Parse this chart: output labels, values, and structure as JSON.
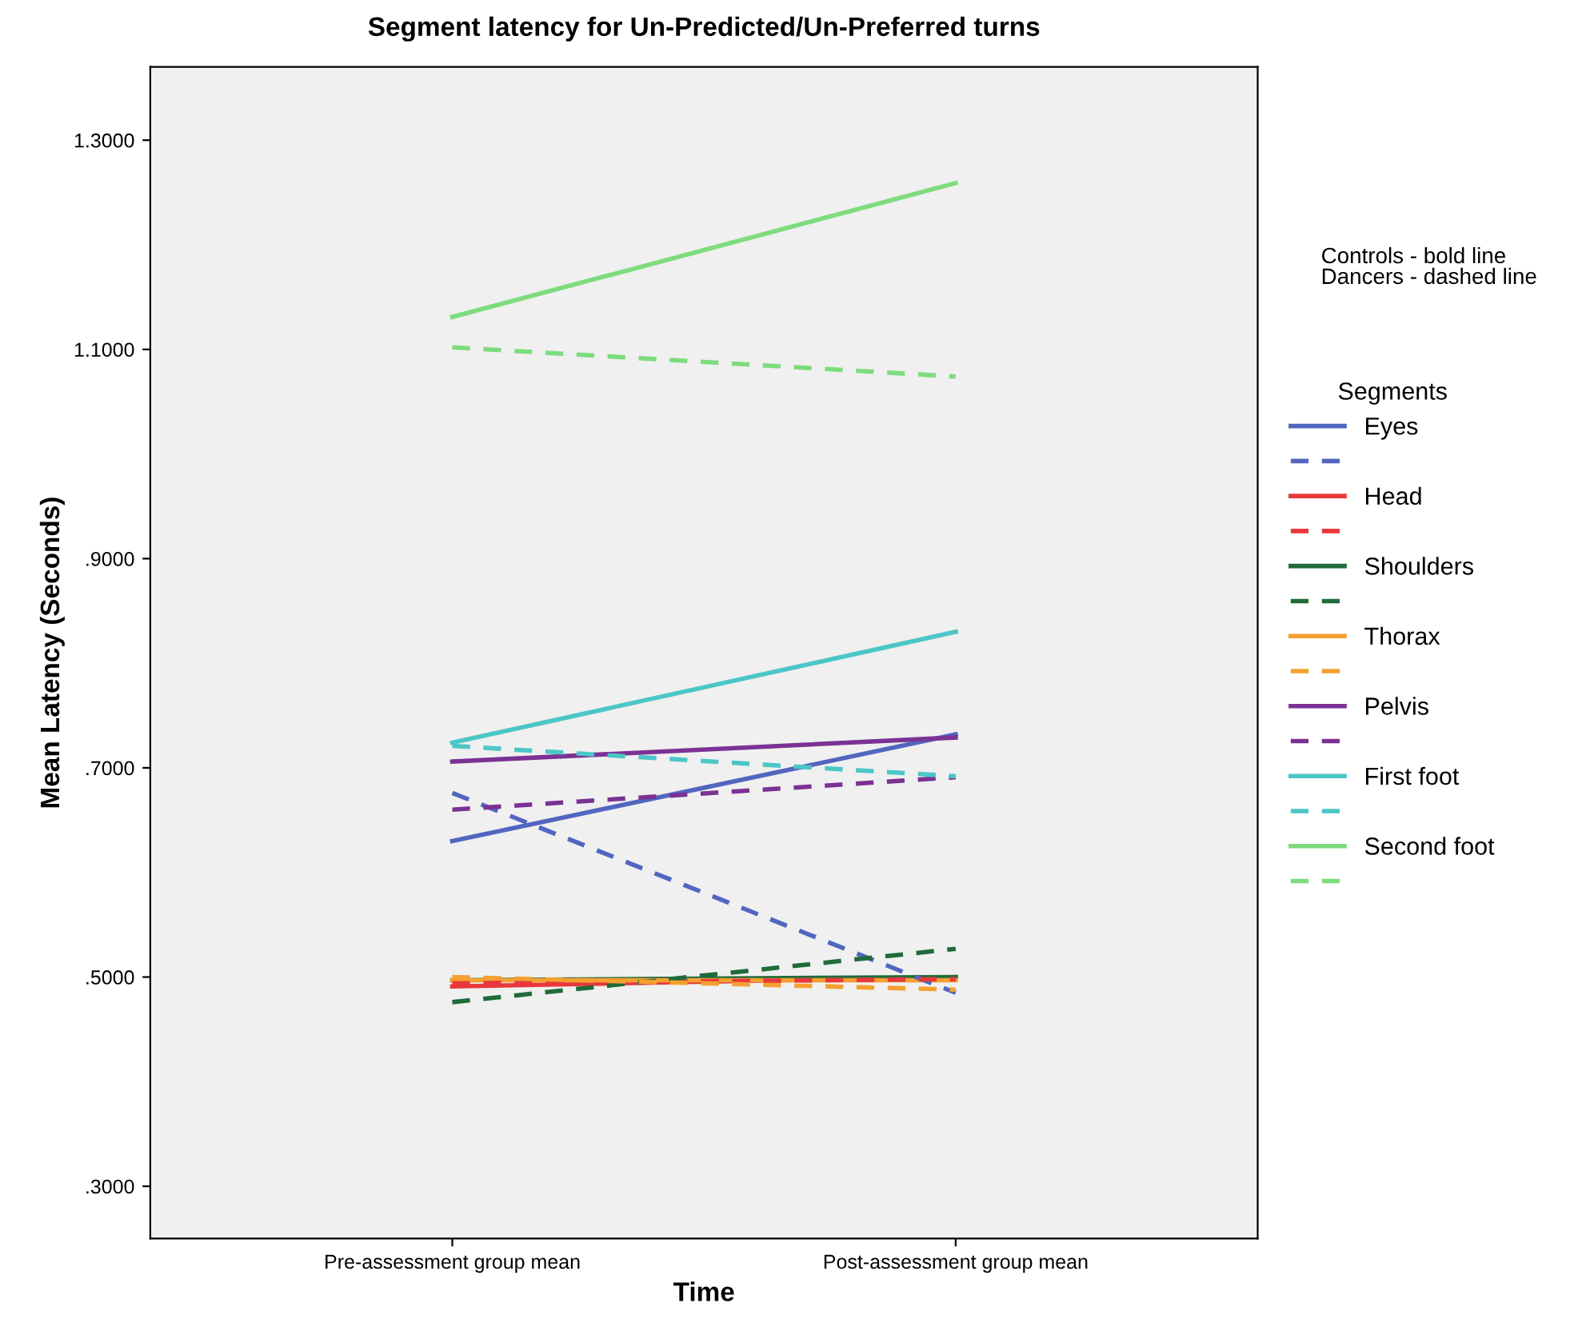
{
  "chart_data": {
    "type": "line",
    "title": "Segment latency for Un-Predicted/Un-Preferred turns",
    "xlabel": "Time",
    "ylabel": "Mean Latency (Seconds)",
    "legend_title": "Segments",
    "legend": "right",
    "grid": false,
    "marker": "none",
    "categories": [
      "Pre-assessment group mean",
      "Post-assessment group mean"
    ],
    "ylim": [
      0.25,
      1.37
    ],
    "yticks": [
      {
        "value": 0.3,
        "label": ".3000"
      },
      {
        "value": 0.5,
        "label": ".5000"
      },
      {
        "value": 0.7,
        "label": ".7000"
      },
      {
        "value": 0.9,
        "label": ".9000"
      },
      {
        "value": 1.1,
        "label": "1.1000"
      },
      {
        "value": 1.3,
        "label": "1.3000"
      }
    ],
    "annotations": [
      "Controls - bold line\nDancers - dashed line"
    ],
    "series": [
      {
        "name": "Eyes",
        "color": "#5266c0",
        "line_style": "solid",
        "values": [
          0.63,
          0.732
        ]
      },
      {
        "color": "#5266c0",
        "line_style": "dashed",
        "values": [
          0.676,
          0.485
        ]
      },
      {
        "name": "Head",
        "color": "#e8383d",
        "line_style": "solid",
        "values": [
          0.491,
          0.5
        ]
      },
      {
        "color": "#e8383d",
        "line_style": "dashed",
        "values": [
          0.494,
          0.498
        ]
      },
      {
        "name": "Shoulders",
        "color": "#1f6b3a",
        "line_style": "solid",
        "values": [
          0.497,
          0.5
        ]
      },
      {
        "color": "#1f6b3a",
        "line_style": "dashed",
        "values": [
          0.476,
          0.527
        ]
      },
      {
        "name": "Thorax",
        "color": "#f5a030",
        "line_style": "solid",
        "values": [
          0.497,
          0.497
        ]
      },
      {
        "color": "#f5a030",
        "line_style": "dashed",
        "values": [
          0.5,
          0.488
        ]
      },
      {
        "name": "Pelvis",
        "color": "#7b3294",
        "line_style": "solid",
        "values": [
          0.706,
          0.729
        ]
      },
      {
        "color": "#7b3294",
        "line_style": "dashed",
        "values": [
          0.66,
          0.691
        ]
      },
      {
        "name": "First foot",
        "color": "#4cc6c6",
        "line_style": "solid",
        "values": [
          0.724,
          0.83
        ]
      },
      {
        "color": "#4cc6c6",
        "line_style": "dashed",
        "values": [
          0.721,
          0.692
        ]
      },
      {
        "name": "Second foot",
        "color": "#7ddc7d",
        "line_style": "solid",
        "values": [
          1.131,
          1.259
        ]
      },
      {
        "color": "#7ddc7d",
        "line_style": "dashed",
        "values": [
          1.102,
          1.074
        ]
      }
    ]
  }
}
